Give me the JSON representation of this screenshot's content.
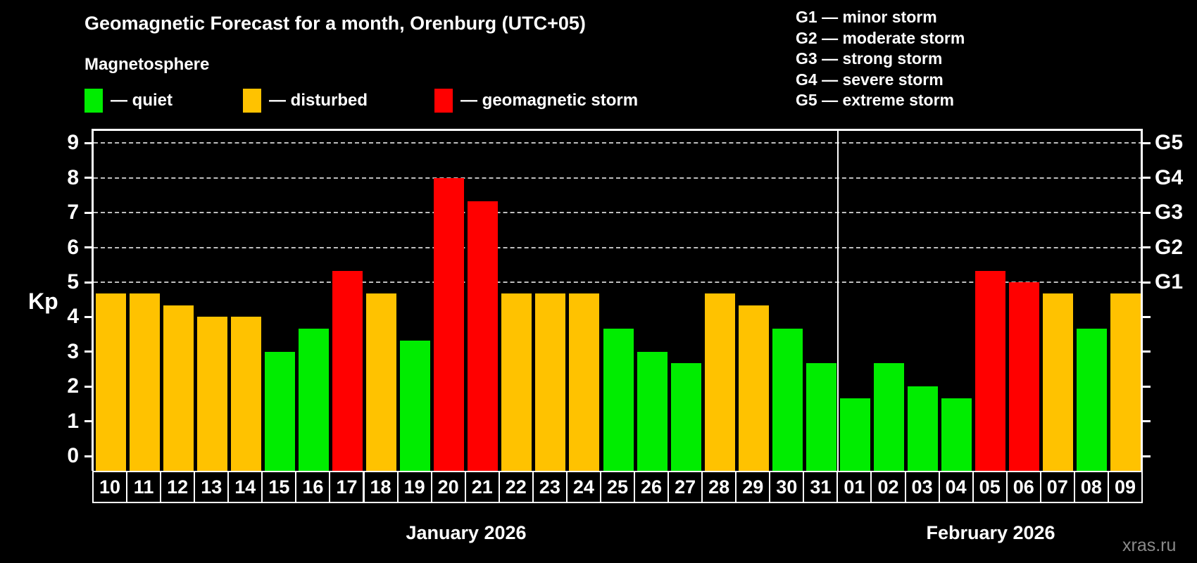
{
  "header": {
    "title": "Geomagnetic Forecast for a month, Orenburg (UTC+05)",
    "subtitle": "Magnetosphere",
    "legend": [
      {
        "status": "quiet",
        "label": "— quiet"
      },
      {
        "status": "disturbed",
        "label": "— disturbed"
      },
      {
        "status": "storm",
        "label": "— geomagnetic storm"
      }
    ],
    "g_scale_legend": [
      "G1 — minor storm",
      "G2 — moderate storm",
      "G3 — strong storm",
      "G4 — severe storm",
      "G5 — extreme storm"
    ]
  },
  "colors": {
    "quiet": "#00ED00",
    "disturbed": "#FFC200",
    "storm": "#FF0000",
    "gridline": "#BFBFBF",
    "axis": "#FFFFFF",
    "watermark": "#8A8A8A"
  },
  "chart_data": {
    "type": "bar",
    "ylabel": "Kp",
    "ylim": [
      0,
      9
    ],
    "y_ticks": [
      0,
      1,
      2,
      3,
      4,
      5,
      6,
      7,
      8,
      9
    ],
    "gridlines_at": [
      5,
      6,
      7,
      8,
      9
    ],
    "grid": "horizontal dashed lines at storm levels only",
    "legend_position": "top-left",
    "right_axis": [
      {
        "kp": 5,
        "label": "G1"
      },
      {
        "kp": 6,
        "label": "G2"
      },
      {
        "kp": 7,
        "label": "G3"
      },
      {
        "kp": 8,
        "label": "G4"
      },
      {
        "kp": 9,
        "label": "G5"
      }
    ],
    "months": [
      {
        "label": "January 2026",
        "days": [
          {
            "day": "10",
            "kp": 4.67,
            "status": "disturbed"
          },
          {
            "day": "11",
            "kp": 4.67,
            "status": "disturbed"
          },
          {
            "day": "12",
            "kp": 4.33,
            "status": "disturbed"
          },
          {
            "day": "13",
            "kp": 4.0,
            "status": "disturbed"
          },
          {
            "day": "14",
            "kp": 4.0,
            "status": "disturbed"
          },
          {
            "day": "15",
            "kp": 3.0,
            "status": "quiet"
          },
          {
            "day": "16",
            "kp": 3.67,
            "status": "quiet"
          },
          {
            "day": "17",
            "kp": 5.33,
            "status": "storm"
          },
          {
            "day": "18",
            "kp": 4.67,
            "status": "disturbed"
          },
          {
            "day": "19",
            "kp": 3.33,
            "status": "quiet"
          },
          {
            "day": "20",
            "kp": 8.0,
            "status": "storm"
          },
          {
            "day": "21",
            "kp": 7.33,
            "status": "storm"
          },
          {
            "day": "22",
            "kp": 4.67,
            "status": "disturbed"
          },
          {
            "day": "23",
            "kp": 4.67,
            "status": "disturbed"
          },
          {
            "day": "24",
            "kp": 4.67,
            "status": "disturbed"
          },
          {
            "day": "25",
            "kp": 3.67,
            "status": "quiet"
          },
          {
            "day": "26",
            "kp": 3.0,
            "status": "quiet"
          },
          {
            "day": "27",
            "kp": 2.67,
            "status": "quiet"
          },
          {
            "day": "28",
            "kp": 4.67,
            "status": "disturbed"
          },
          {
            "day": "29",
            "kp": 4.33,
            "status": "disturbed"
          },
          {
            "day": "30",
            "kp": 3.67,
            "status": "quiet"
          },
          {
            "day": "31",
            "kp": 2.67,
            "status": "quiet"
          }
        ]
      },
      {
        "label": "February 2026",
        "days": [
          {
            "day": "01",
            "kp": 1.67,
            "status": "quiet"
          },
          {
            "day": "02",
            "kp": 2.67,
            "status": "quiet"
          },
          {
            "day": "03",
            "kp": 2.0,
            "status": "quiet"
          },
          {
            "day": "04",
            "kp": 1.67,
            "status": "quiet"
          },
          {
            "day": "05",
            "kp": 5.33,
            "status": "storm"
          },
          {
            "day": "06",
            "kp": 5.0,
            "status": "storm"
          },
          {
            "day": "07",
            "kp": 4.67,
            "status": "disturbed"
          },
          {
            "day": "08",
            "kp": 3.67,
            "status": "quiet"
          },
          {
            "day": "09",
            "kp": 4.67,
            "status": "disturbed"
          }
        ]
      }
    ]
  },
  "watermark": "xras.ru"
}
